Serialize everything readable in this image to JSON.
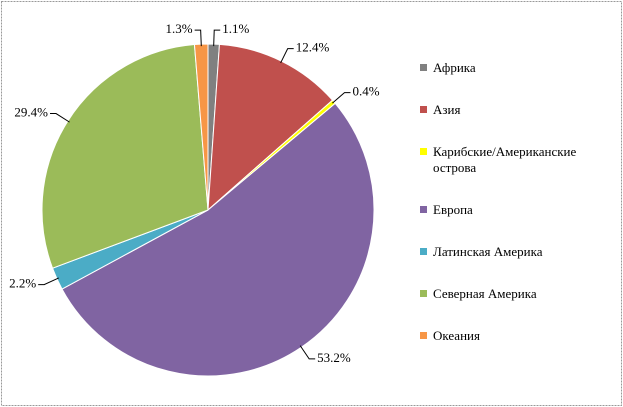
{
  "chart_data": {
    "type": "pie",
    "categories": [
      "Африка",
      "Азия",
      "Карибские/Американские острова",
      "Европа",
      "Латинская Америка",
      "Северная Америка",
      "Океания"
    ],
    "values": [
      1.1,
      12.4,
      0.4,
      53.2,
      2.2,
      29.4,
      1.3
    ],
    "value_labels": [
      "1.1%",
      "12.4%",
      "0.4%",
      "53.2%",
      "2.2%",
      "29.4%",
      "1.3%"
    ],
    "colors": [
      "#808080",
      "#c0504d",
      "#ffff00",
      "#8064a2",
      "#4bacc6",
      "#9bbb59",
      "#f79646"
    ],
    "legend": "right"
  }
}
